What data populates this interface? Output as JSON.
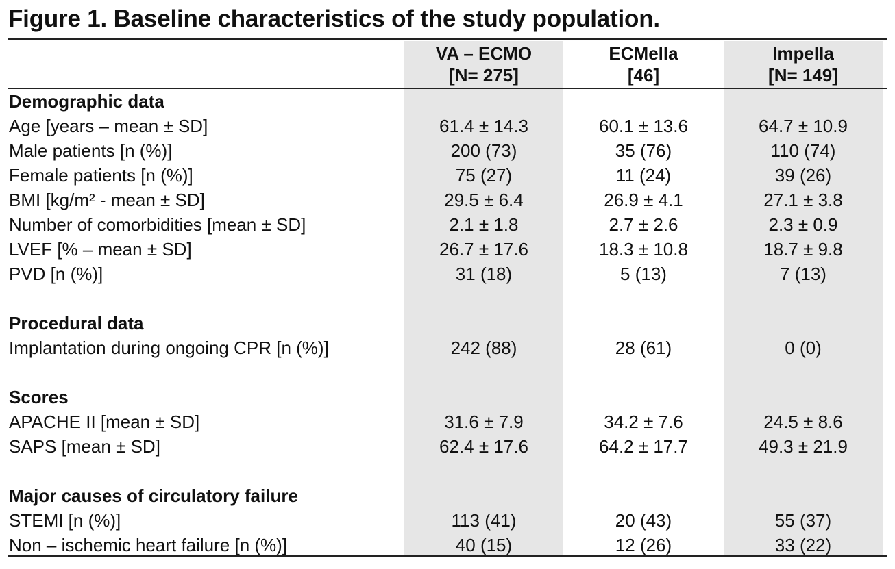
{
  "title": "Figure 1. Baseline characteristics of the study population.",
  "columns": [
    {
      "line1": "VA – ECMO",
      "line2": "[N= 275]"
    },
    {
      "line1": "ECMella",
      "line2": "[46]"
    },
    {
      "line1": "Impella",
      "line2": "[N= 149]"
    }
  ],
  "rows": [
    {
      "label": "Demographic data",
      "section": true,
      "values": [
        "",
        "",
        ""
      ]
    },
    {
      "label": "Age [years – mean ± SD]",
      "values": [
        "61.4 ± 14.3",
        "60.1 ± 13.6",
        "64.7 ± 10.9"
      ]
    },
    {
      "label": "Male patients [n (%)]",
      "values": [
        "200 (73)",
        "35 (76)",
        "110 (74)"
      ]
    },
    {
      "label": "Female patients [n (%)]",
      "values": [
        "75 (27)",
        "11 (24)",
        "39 (26)"
      ]
    },
    {
      "label": "BMI [kg/m² -  mean ± SD]",
      "values": [
        "29.5 ± 6.4",
        "26.9 ± 4.1",
        "27.1 ± 3.8"
      ]
    },
    {
      "label": "Number of comorbidities [mean ± SD]",
      "values": [
        "2.1 ± 1.8",
        "2.7 ± 2.6",
        "2.3 ± 0.9"
      ]
    },
    {
      "label": "LVEF [% – mean ± SD]",
      "values": [
        "26.7 ± 17.6",
        "18.3 ± 10.8",
        "18.7 ± 9.8"
      ]
    },
    {
      "label": "PVD [n (%)]",
      "values": [
        "31 (18)",
        "5 (13)",
        "7 (13)"
      ]
    },
    {
      "label": "Procedural data",
      "section": true,
      "values": [
        "",
        "",
        ""
      ]
    },
    {
      "label": "Implantation during ongoing CPR [n (%)]",
      "values": [
        "242 (88)",
        "28 (61)",
        "0 (0)"
      ]
    },
    {
      "label": "Scores",
      "section": true,
      "values": [
        "",
        "",
        ""
      ]
    },
    {
      "label": "APACHE II [mean ± SD]",
      "values": [
        "31.6 ± 7.9",
        "34.2 ± 7.6",
        "24.5 ± 8.6"
      ]
    },
    {
      "label": "SAPS [mean ± SD]",
      "values": [
        "62.4 ± 17.6",
        "64.2 ± 17.7",
        "49.3 ± 21.9"
      ]
    },
    {
      "label": "Major causes of circulatory failure",
      "section": true,
      "values": [
        "",
        "",
        ""
      ]
    },
    {
      "label": "STEMI [n (%)]",
      "values": [
        "113 (41)",
        "20 (43)",
        "55 (37)"
      ]
    },
    {
      "label": "Non – ischemic heart failure [n (%)]",
      "values": [
        "40 (15)",
        "12 (26)",
        "33 (22)"
      ]
    }
  ]
}
